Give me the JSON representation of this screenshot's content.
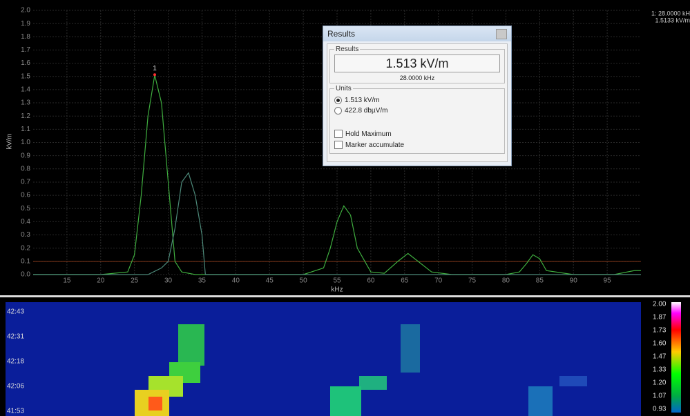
{
  "spectrum": {
    "y_label": "kV/m",
    "x_label": "kHz",
    "xlim": [
      10,
      100
    ],
    "ylim": [
      0,
      2
    ],
    "yticks": [
      {
        "value": 0,
        "label": "0.0"
      },
      0.1,
      0.2,
      0.3,
      0.4,
      0.5,
      0.6,
      0.7,
      0.8,
      0.9,
      {
        "value": 1,
        "label": "1.0"
      },
      1.1,
      1.2,
      1.3,
      1.4,
      1.5,
      1.6,
      1.7,
      1.8,
      1.9,
      {
        "value": 2,
        "label": "2.0"
      }
    ],
    "xticks": [
      15,
      20,
      25,
      30,
      35,
      40,
      45,
      50,
      55,
      60,
      65,
      70,
      75,
      80,
      85,
      90,
      95
    ],
    "threshold": 0.1,
    "threshold_color": "#8a3a1a",
    "traces": [
      {
        "color": "#3fae3f",
        "x": [
          10,
          20,
          24,
          25,
          26,
          27,
          28,
          29,
          30,
          31,
          32,
          34,
          40,
          50,
          53,
          54,
          55,
          56,
          57,
          58,
          60,
          62,
          64,
          65.5,
          67,
          69,
          72,
          80,
          82,
          83,
          84,
          85,
          86,
          90,
          96,
          99,
          100
        ],
        "values": [
          0,
          0,
          0.02,
          0.15,
          0.6,
          1.2,
          1.51,
          1.3,
          0.7,
          0.1,
          0.02,
          0,
          0,
          0,
          0.05,
          0.2,
          0.4,
          0.52,
          0.45,
          0.2,
          0.02,
          0.01,
          0.1,
          0.16,
          0.1,
          0.02,
          0,
          0,
          0.02,
          0.08,
          0.15,
          0.12,
          0.03,
          0,
          0,
          0.03,
          0.03
        ]
      },
      {
        "color": "#4d8a7a",
        "x": [
          10,
          27,
          29,
          30,
          31,
          32,
          33,
          34,
          35,
          35.5,
          37,
          100
        ],
        "values": [
          0,
          0,
          0.05,
          0.1,
          0.35,
          0.7,
          0.77,
          0.6,
          0.3,
          0,
          0,
          0
        ]
      }
    ],
    "marker": {
      "label": "1",
      "x": 28,
      "y": 1.513
    }
  },
  "marker_readout": [
    "1: 28.0000 kH",
    "1.5133 kV/m"
  ],
  "waterfall": {
    "time_labels": [
      "42:43",
      "42:31",
      "42:18",
      "42:06",
      "41:53"
    ],
    "colorbar_labels": [
      "2.00",
      "1.87",
      "1.73",
      "1.60",
      "1.47",
      "1.33",
      "1.20",
      "1.07",
      "0.93"
    ]
  },
  "dialog": {
    "title": "Results",
    "results_group": "Results",
    "value": "1.513 kV/m",
    "frequency": "28.0000 kHz",
    "units_group": "Units",
    "unit_options": [
      "1.513 kV/m",
      "422.8 dbµV/m"
    ],
    "checkboxes": [
      "Hold Maximum",
      "Marker accumulate"
    ]
  }
}
